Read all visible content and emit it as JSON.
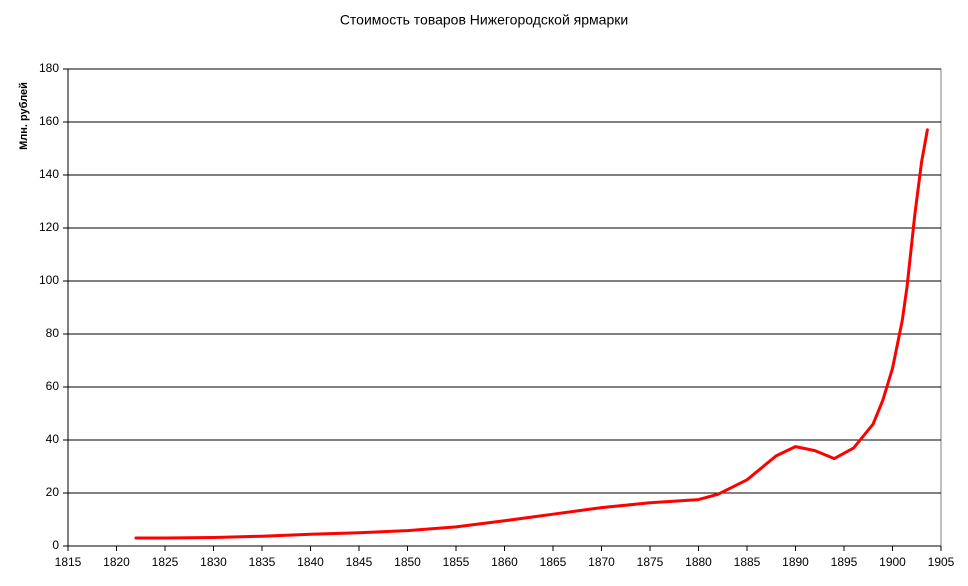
{
  "chart_data": {
    "type": "line",
    "title": "Стоимость товаров Нижегородской ярмарки",
    "y_label": "Млн. рублей",
    "x": [
      1822,
      1825,
      1830,
      1835,
      1840,
      1845,
      1850,
      1855,
      1860,
      1865,
      1870,
      1875,
      1880,
      1882,
      1885,
      1888,
      1890,
      1892,
      1894,
      1896,
      1898,
      1899,
      1900,
      1901,
      1901.5,
      1902.3,
      1903,
      1903.6
    ],
    "series": [
      {
        "name": "Стоимость товаров",
        "color": "#ff0000",
        "values": [
          3,
          3,
          3.2,
          3.7,
          4.4,
          5,
          5.8,
          7.2,
          9.5,
          12,
          14.5,
          16.3,
          17.5,
          19.5,
          25,
          34,
          37.5,
          36,
          33,
          37,
          46,
          55,
          67,
          85,
          98,
          125,
          145,
          157
        ]
      }
    ],
    "xlim": [
      1815,
      1905
    ],
    "xticks": [
      1815,
      1820,
      1825,
      1830,
      1835,
      1840,
      1845,
      1850,
      1855,
      1860,
      1865,
      1870,
      1875,
      1880,
      1885,
      1890,
      1895,
      1900,
      1905
    ],
    "ylim": [
      0,
      180
    ],
    "yticks": [
      0,
      20,
      40,
      60,
      80,
      100,
      120,
      140,
      160,
      180
    ],
    "grid": true
  }
}
